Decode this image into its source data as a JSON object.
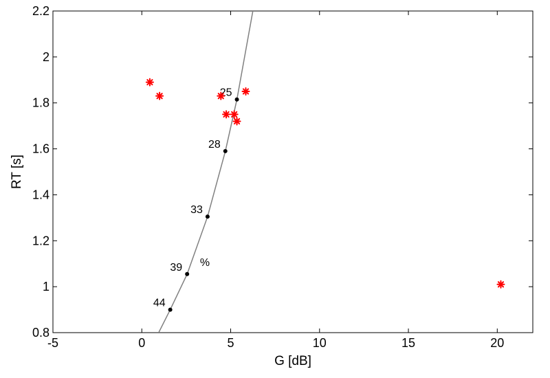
{
  "chart_data": {
    "type": "scatter",
    "title": "",
    "xlabel": "G  [dB]",
    "ylabel": "RT  [s]",
    "xlim": [
      -5,
      22
    ],
    "ylim": [
      0.8,
      2.2
    ],
    "xticks": [
      -5,
      0,
      5,
      10,
      15,
      20
    ],
    "xtick_labels": [
      "-5",
      "0",
      "5",
      "10",
      "15",
      "20"
    ],
    "yticks": [
      0.8,
      1.0,
      1.2,
      1.4,
      1.6,
      1.8,
      2.0,
      2.2
    ],
    "ytick_labels": [
      "0.8",
      "1",
      "1.2",
      "1.4",
      "1.6",
      "1.8",
      "2",
      "2.2"
    ],
    "grid": false,
    "colors": {
      "curve": "#808080",
      "curve_points": "#000000",
      "measured": "#ff0000"
    },
    "curve": {
      "x": [
        0.95,
        1.6,
        2.55,
        3.7,
        4.7,
        5.35,
        6.25
      ],
      "y": [
        0.8,
        0.9,
        1.055,
        1.305,
        1.59,
        1.815,
        2.2
      ]
    },
    "curve_points": [
      {
        "x": 1.6,
        "y": 0.9,
        "label": "44"
      },
      {
        "x": 2.55,
        "y": 1.055,
        "label": "39"
      },
      {
        "x": 3.7,
        "y": 1.305,
        "label": "33"
      },
      {
        "x": 4.7,
        "y": 1.59,
        "label": "28"
      },
      {
        "x": 5.35,
        "y": 1.815,
        "label": "25"
      }
    ],
    "annotation": {
      "text": "%",
      "x": 3.55,
      "y": 1.09
    },
    "measured_points": [
      {
        "x": 0.45,
        "y": 1.89
      },
      {
        "x": 1.0,
        "y": 1.83
      },
      {
        "x": 4.45,
        "y": 1.83
      },
      {
        "x": 5.85,
        "y": 1.85
      },
      {
        "x": 4.75,
        "y": 1.75
      },
      {
        "x": 5.2,
        "y": 1.75
      },
      {
        "x": 5.35,
        "y": 1.72
      },
      {
        "x": 20.2,
        "y": 1.01
      }
    ]
  }
}
